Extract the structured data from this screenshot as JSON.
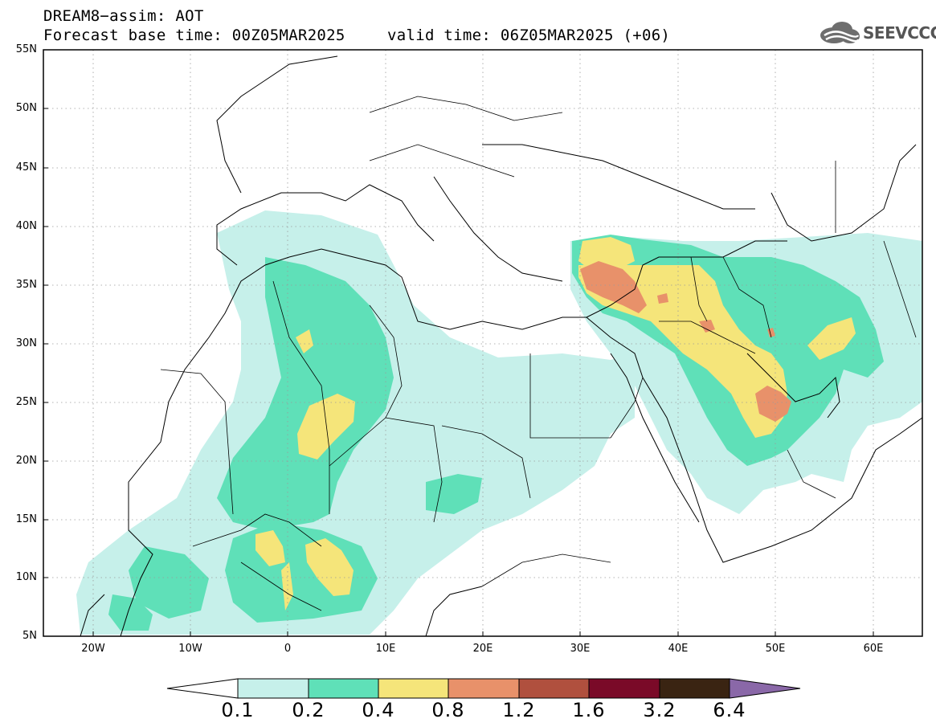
{
  "header": {
    "title": "DREAM8−assim: AOT",
    "base_time": "Forecast base time: 00Z05MAR2025",
    "valid_time": "valid time: 06Z05MAR2025 (+06)",
    "logo_text": "SEEVCCC"
  },
  "axes": {
    "lat_labels": [
      "55N",
      "50N",
      "45N",
      "40N",
      "35N",
      "30N",
      "25N",
      "20N",
      "15N",
      "10N",
      "5N"
    ],
    "lon_labels": [
      "20W",
      "10W",
      "0",
      "10E",
      "20E",
      "30E",
      "40E",
      "50E",
      "60E"
    ]
  },
  "colorbar": {
    "labels": [
      "0.1",
      "0.2",
      "0.4",
      "0.8",
      "1.2",
      "1.6",
      "3.2",
      "6.4"
    ],
    "colors": [
      "#c6f0ea",
      "#5fe0b8",
      "#f5e57a",
      "#e8916a",
      "#b0503e",
      "#7a0a28",
      "#3a2412",
      "#8a68a8"
    ]
  }
}
